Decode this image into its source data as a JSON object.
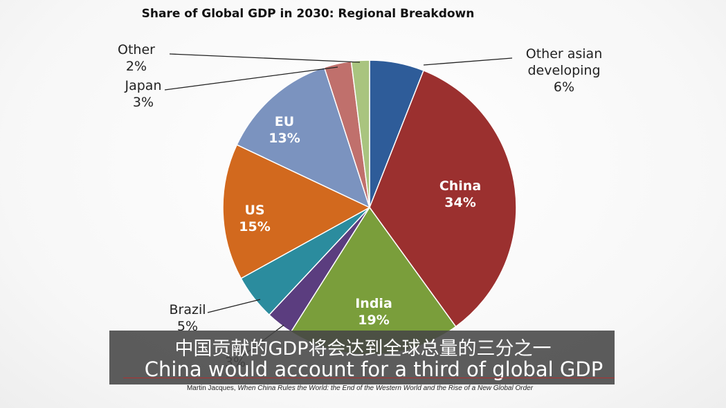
{
  "chart_data": {
    "type": "pie",
    "title": "Share of Global GDP in 2030: Regional Breakdown",
    "slices": [
      {
        "name": "Other asian developing",
        "label_lines": [
          "Other asian",
          "developing",
          "6%"
        ],
        "value": 6,
        "color": "#2E5C99",
        "label_inside": false
      },
      {
        "name": "China",
        "label_lines": [
          "China",
          "34%"
        ],
        "value": 34,
        "color": "#9B302F",
        "label_inside": true
      },
      {
        "name": "India",
        "label_lines": [
          "India",
          "19%"
        ],
        "value": 19,
        "color": "#7A9E3B",
        "label_inside": true
      },
      {
        "name": "",
        "label_lines": [
          "3%"
        ],
        "value": 3,
        "color": "#5B3D7F",
        "label_inside": false
      },
      {
        "name": "Brazil",
        "label_lines": [
          "Brazil",
          "5%"
        ],
        "value": 5,
        "color": "#2B8C9E",
        "label_inside": false
      },
      {
        "name": "US",
        "label_lines": [
          "US",
          "15%"
        ],
        "value": 15,
        "color": "#D2691E",
        "label_inside": true
      },
      {
        "name": "EU",
        "label_lines": [
          "EU",
          "13%"
        ],
        "value": 13,
        "color": "#7B93BF",
        "label_inside": true
      },
      {
        "name": "Japan",
        "label_lines": [
          "Japan",
          "3%"
        ],
        "value": 3,
        "color": "#C0706C",
        "label_inside": false
      },
      {
        "name": "Other",
        "label_lines": [
          "Other",
          "2%"
        ],
        "value": 2,
        "color": "#A9C47F",
        "label_inside": false
      }
    ]
  },
  "subtitles": {
    "zh": "中国贡献的GDP将会达到全球总量的三分之一",
    "en": "China would account for a third of global GDP"
  },
  "citation": {
    "author": "Martin Jacques, ",
    "work": "When China Rules the World: the End of the Western World and the Rise of a New Global Order"
  }
}
